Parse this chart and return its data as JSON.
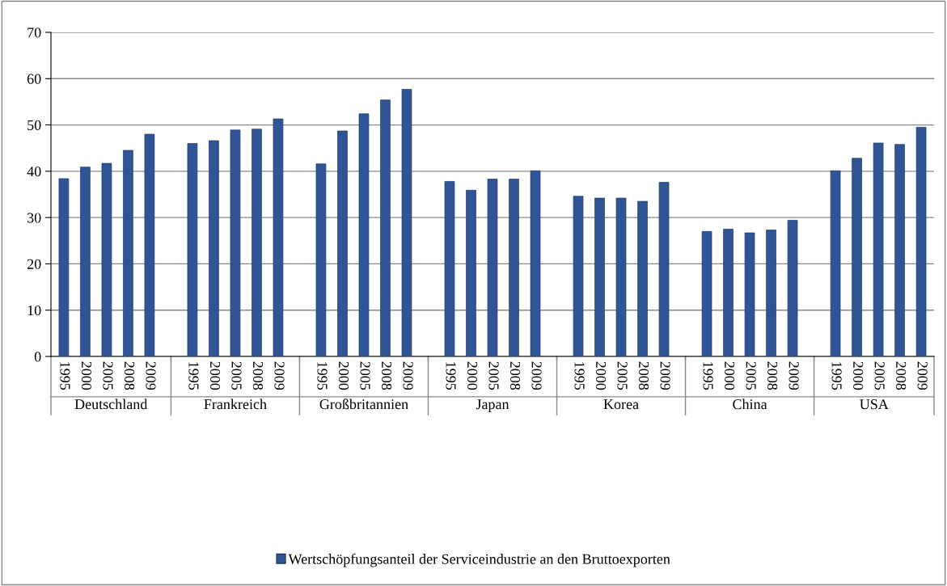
{
  "chart_data": {
    "type": "bar",
    "categories": [
      "1995",
      "2000",
      "2005",
      "2008",
      "2009",
      null,
      "1995",
      "2000",
      "2005",
      "2008",
      "2009",
      null,
      "1995",
      "2000",
      "2005",
      "2008",
      "2009",
      null,
      "1995",
      "2000",
      "2005",
      "2008",
      "2009",
      null,
      "1995",
      "2000",
      "2005",
      "2008",
      "2009",
      null,
      "1995",
      "2000",
      "2005",
      "2008",
      "2009",
      null,
      "1995",
      "2000",
      "2005",
      "2008",
      "2009"
    ],
    "series": [
      {
        "name": "Wertschöpfungsanteil der Serviceindustrie an den Bruttoexporten",
        "color": "#2f5597",
        "values": [
          38.4,
          40.9,
          41.7,
          44.5,
          48.0,
          null,
          46.0,
          46.6,
          48.9,
          49.1,
          51.3,
          null,
          41.6,
          48.7,
          52.4,
          55.4,
          57.7,
          null,
          37.8,
          35.9,
          38.3,
          38.3,
          40.1,
          null,
          34.6,
          34.2,
          34.2,
          33.5,
          37.6,
          null,
          27.0,
          27.5,
          26.7,
          27.3,
          29.4,
          null,
          40.1,
          42.8,
          46.1,
          45.8,
          49.5
        ]
      }
    ],
    "annotations": [
      "Deutschland",
      "Frankreich",
      "Großbritannien",
      "Japan",
      "Korea",
      "China",
      "USA"
    ],
    "ylim": [
      0,
      70
    ],
    "yticks": [
      0,
      10,
      20,
      30,
      40,
      50,
      60,
      70
    ],
    "grid": "y",
    "legend": "bottom"
  }
}
